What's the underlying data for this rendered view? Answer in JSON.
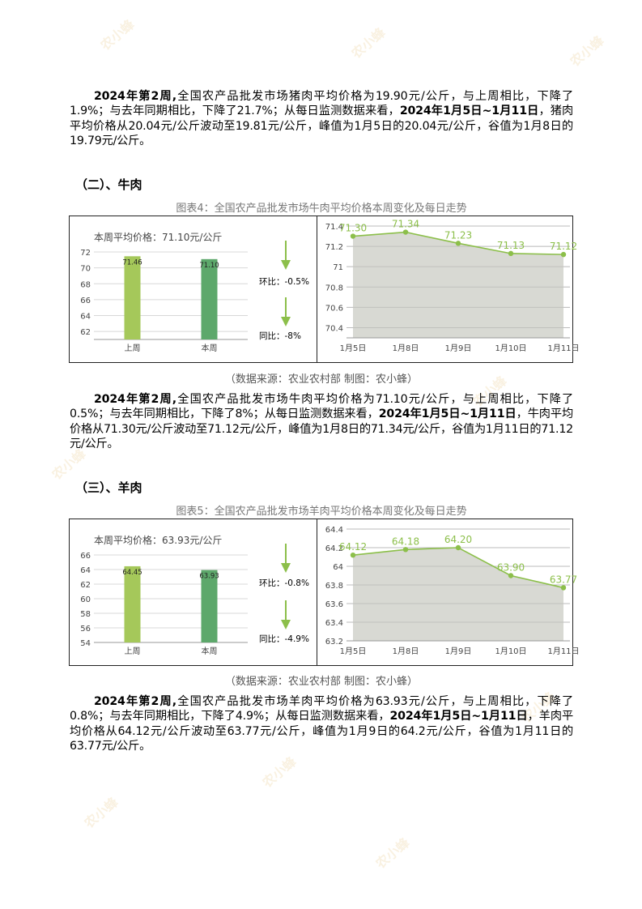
{
  "pork_paragraph": {
    "p1": "2024年第2周,",
    "p2": "全国农产品批发市场猪肉平均价格为19.90元/公斤，与上周相比，下降了1.9%；与去年同期相比，下降了21.7%；从每日监测数据来看，",
    "p3": "2024年1月5日~1月11日",
    "p4": "，猪肉平均价格从20.04元/公斤波动至19.81元/公斤，峰值为1月5日的20.04元/公斤，谷值为1月8日的19.79元/公斤。"
  },
  "sections": [
    {
      "heading": "（二）、牛肉",
      "caption": "图表4：全国农产品批发市场牛肉平均价格本周变化及每日走势",
      "source": "（数据来源：农业农村部    制图：农小蜂）",
      "weekly": {
        "label": "本周平均价格：71.10元/公斤",
        "huanbi": "环比：-0.5%",
        "tongbi": "同比：-8%"
      },
      "paragraph": {
        "p1": "2024年第2周,",
        "p2": "全国农产品批发市场牛肉平均价格为71.10元/公斤，与上周相比，下降了0.5%；与去年同期相比，下降了8%；从每日监测数据来看，",
        "p3": "2024年1月5日~1月11日",
        "p4": "，牛肉平均价格从71.30元/公斤波动至71.12元/公斤，峰值为1月8日的71.34元/公斤，谷值为1月11日的71.12元/公斤。"
      }
    },
    {
      "heading": "（三）、羊肉",
      "caption": "图表5：全国农产品批发市场羊肉平均价格本周变化及每日走势",
      "source": "（数据来源：农业农村部    制图：农小蜂）",
      "weekly": {
        "label": "本周平均价格：63.93元/公斤",
        "huanbi": "环比：-0.8%",
        "tongbi": "同比：-4.9%"
      },
      "paragraph": {
        "p1": "2024年第2周,",
        "p2": "全国农产品批发市场羊肉平均价格为63.93元/公斤，与上周相比，下降了0.8%；与去年同期相比，下降了4.9%；从每日监测数据来看，",
        "p3": "2024年1月5日~1月11日",
        "p4": "，羊肉平均价格从64.12元/公斤波动至63.77元/公斤，峰值为1月9日的64.2元/公斤，谷值为1月11日的63.77元/公斤。"
      }
    }
  ],
  "watermark": "农小蜂",
  "chart_data": [
    {
      "type": "bar",
      "categories": [
        "上周",
        "本周"
      ],
      "values": [
        71.46,
        71.1
      ],
      "ylim": [
        61,
        72
      ],
      "yticks": [
        62,
        64,
        66,
        68,
        70,
        72
      ],
      "colors": [
        "#a5c85a",
        "#5da86b"
      ]
    },
    {
      "type": "area",
      "x": [
        "1月5日",
        "1月8日",
        "1月9日",
        "1月10日",
        "1月11日"
      ],
      "values": [
        71.3,
        71.34,
        71.23,
        71.13,
        71.12
      ],
      "ylim": [
        70.3,
        71.4
      ],
      "yticks": [
        70.4,
        70.6,
        70.8,
        71,
        71.2,
        71.4
      ],
      "line_color": "#8cbf4a",
      "fill_color": "#d8d9d3"
    },
    {
      "type": "bar",
      "categories": [
        "上周",
        "本周"
      ],
      "values": [
        64.45,
        63.93
      ],
      "ylim": [
        54,
        66
      ],
      "yticks": [
        54,
        56,
        58,
        60,
        62,
        64,
        66
      ],
      "colors": [
        "#a5c85a",
        "#5da86b"
      ]
    },
    {
      "type": "area",
      "x": [
        "1月5日",
        "1月8日",
        "1月9日",
        "1月10日",
        "1月11日"
      ],
      "values": [
        64.12,
        64.18,
        64.2,
        63.9,
        63.77
      ],
      "ylim": [
        63.2,
        64.4
      ],
      "yticks": [
        63.2,
        63.4,
        63.6,
        63.8,
        64,
        64.2,
        64.4
      ],
      "line_color": "#8cbf4a",
      "fill_color": "#d8d9d3"
    }
  ]
}
